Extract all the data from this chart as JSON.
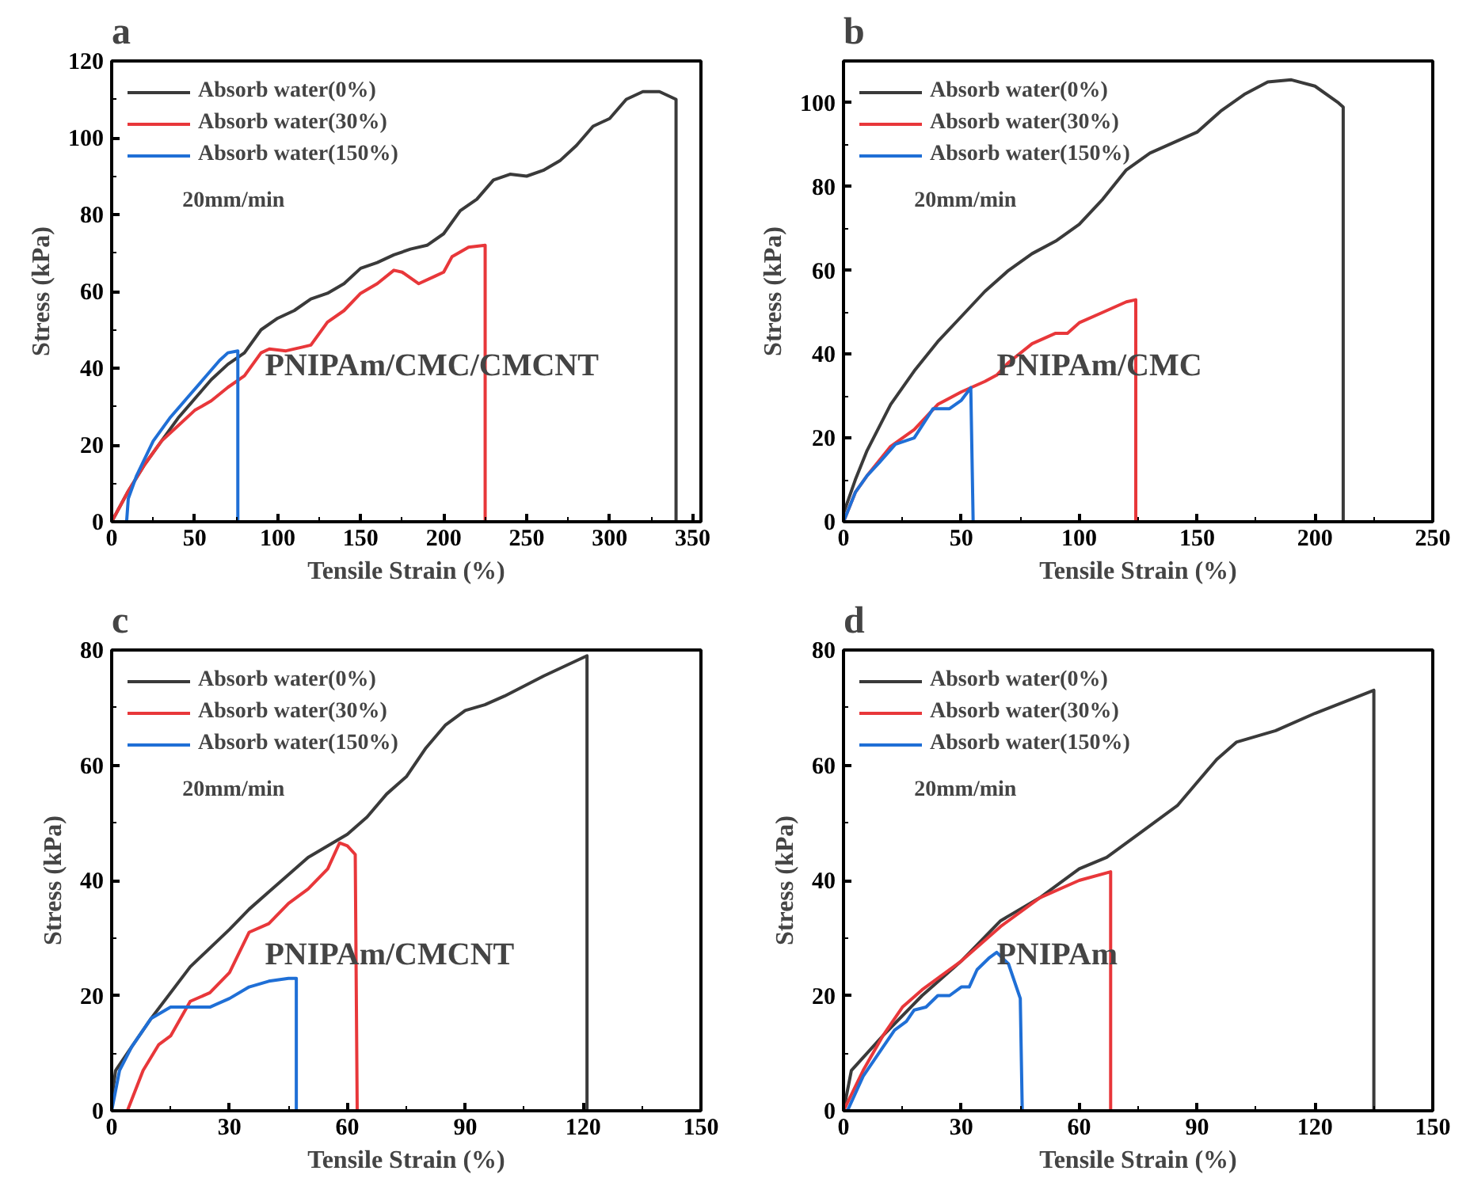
{
  "chart_data": [
    {
      "type": "line",
      "title": "a",
      "xlabel": "Tensile Strain (%)",
      "ylabel": "Stress (kPa)",
      "xlim": [
        0,
        355
      ],
      "ylim": [
        0,
        120
      ],
      "xticks": [
        0,
        50,
        100,
        150,
        200,
        250,
        300,
        350
      ],
      "yticks": [
        0,
        20,
        40,
        60,
        80,
        100,
        120
      ],
      "grid": false,
      "legend": "top left",
      "annotations": [
        "20mm/min",
        "PNIPAm/CMC/CMCNT"
      ],
      "series": [
        {
          "name": "Absorb water(0%)",
          "color": "#3a3a3a",
          "x": [
            0,
            10,
            20,
            30,
            40,
            50,
            60,
            70,
            80,
            90,
            100,
            110,
            120,
            130,
            140,
            150,
            160,
            170,
            180,
            190,
            200,
            210,
            220,
            230,
            240,
            250,
            260,
            270,
            280,
            290,
            300,
            310,
            320,
            330,
            340,
            340
          ],
          "values": [
            0,
            8,
            15,
            21,
            27,
            32,
            37,
            41,
            44,
            50,
            53,
            55,
            58,
            59.5,
            62,
            66,
            67.5,
            69.5,
            71,
            72,
            75,
            81,
            84,
            89,
            90.5,
            90,
            91.5,
            94,
            98,
            103,
            105,
            110,
            112,
            112,
            110,
            0
          ]
        },
        {
          "name": "Absorb water(30%)",
          "color": "#e8373a",
          "x": [
            0,
            10,
            20,
            30,
            40,
            50,
            60,
            70,
            80,
            90,
            95,
            105,
            115,
            120,
            130,
            140,
            150,
            160,
            170,
            175,
            185,
            195,
            200,
            205,
            215,
            225,
            225
          ],
          "values": [
            0,
            8,
            15,
            21,
            25,
            29,
            31.5,
            35,
            38,
            44,
            45,
            44.5,
            45.5,
            46,
            52,
            55,
            59.5,
            62,
            65.5,
            65,
            62,
            64,
            65,
            69,
            71.5,
            72,
            0
          ]
        },
        {
          "name": "Absorb water(150%)",
          "color": "#1f6fd6",
          "x": [
            9,
            10,
            15,
            25,
            35,
            45,
            55,
            65,
            70,
            76,
            76
          ],
          "values": [
            0,
            6,
            12,
            21,
            27,
            32,
            37,
            42,
            44,
            44.5,
            0
          ]
        }
      ]
    },
    {
      "type": "line",
      "title": "b",
      "xlabel": "Tensile Strain (%)",
      "ylabel": "Stress (kPa)",
      "xlim": [
        0,
        250
      ],
      "ylim": [
        0,
        110
      ],
      "xticks": [
        0,
        50,
        100,
        150,
        200,
        250
      ],
      "yticks": [
        0,
        20,
        40,
        60,
        80,
        100
      ],
      "grid": false,
      "legend": "top left",
      "annotations": [
        "20mm/min",
        "PNIPAm/CMC"
      ],
      "series": [
        {
          "name": "Absorb water(0%)",
          "color": "#3a3a3a",
          "x": [
            0,
            5,
            10,
            20,
            30,
            40,
            50,
            60,
            70,
            80,
            90,
            100,
            110,
            120,
            130,
            140,
            150,
            160,
            170,
            180,
            190,
            200,
            210,
            212,
            212
          ],
          "values": [
            2,
            10,
            17,
            28,
            36,
            43,
            49,
            55,
            60,
            64,
            67,
            71,
            77,
            84,
            88,
            90.5,
            93,
            98,
            102,
            105,
            105.5,
            104,
            100,
            99,
            0
          ]
        },
        {
          "name": "Absorb water(30%)",
          "color": "#e8373a",
          "x": [
            0,
            5,
            10,
            20,
            30,
            40,
            50,
            60,
            65,
            70,
            80,
            90,
            95,
            100,
            110,
            120,
            124,
            124
          ],
          "values": [
            0,
            7,
            11,
            18,
            22,
            28,
            31,
            33.5,
            35,
            38,
            42.5,
            45,
            45,
            47.5,
            50,
            52.5,
            53,
            0
          ]
        },
        {
          "name": "Absorb water(150%)",
          "color": "#1f6fd6",
          "x": [
            0,
            5,
            10,
            15,
            22,
            30,
            38,
            45,
            50,
            54,
            55
          ],
          "values": [
            0,
            7,
            11,
            14,
            18.5,
            20,
            27,
            27,
            29,
            32,
            0
          ]
        }
      ]
    },
    {
      "type": "line",
      "title": "c",
      "xlabel": "Tensile Strain (%)",
      "ylabel": "Stress (kPa)",
      "xlim": [
        0,
        150
      ],
      "ylim": [
        0,
        80
      ],
      "xticks": [
        0,
        30,
        60,
        90,
        120,
        150
      ],
      "yticks": [
        0,
        20,
        40,
        60,
        80
      ],
      "grid": false,
      "legend": "top left",
      "annotations": [
        "20mm/min",
        "PNIPAm/CMCNT"
      ],
      "series": [
        {
          "name": "Absorb water(0%)",
          "color": "#3a3a3a",
          "x": [
            0,
            1,
            5,
            10,
            20,
            30,
            35,
            40,
            50,
            60,
            65,
            70,
            75,
            80,
            85,
            90,
            95,
            100,
            110,
            121,
            121
          ],
          "values": [
            2,
            7,
            11,
            16,
            25,
            31.5,
            35,
            38,
            44,
            48,
            51,
            55,
            58,
            63,
            67,
            69.5,
            70.5,
            72,
            75.5,
            79,
            0
          ]
        },
        {
          "name": "Absorb water(30%)",
          "color": "#e8373a",
          "x": [
            4,
            8,
            12,
            15,
            20,
            25,
            30,
            35,
            40,
            45,
            50,
            55,
            58,
            60,
            62,
            62.5
          ],
          "values": [
            0,
            7,
            11.5,
            13,
            19,
            20.5,
            24,
            31,
            32.5,
            36,
            38.5,
            42,
            46.5,
            46,
            44.5,
            0
          ]
        },
        {
          "name": "Absorb water(150%)",
          "color": "#1f6fd6",
          "x": [
            0,
            2,
            5,
            10,
            15,
            20,
            25,
            30,
            35,
            40,
            45,
            47,
            47
          ],
          "values": [
            0,
            7,
            11,
            16,
            18,
            18,
            18,
            19.5,
            21.5,
            22.5,
            23,
            23,
            0
          ]
        }
      ]
    },
    {
      "type": "line",
      "title": "d",
      "xlabel": "Tensile Strain (%)",
      "ylabel": "Stress (kPa)",
      "xlim": [
        0,
        150
      ],
      "ylim": [
        0,
        80
      ],
      "xticks": [
        0,
        30,
        60,
        90,
        120,
        150
      ],
      "yticks": [
        0,
        20,
        40,
        60,
        80
      ],
      "grid": false,
      "legend": "top left",
      "annotations": [
        "20mm/min",
        "PNIPAm"
      ],
      "series": [
        {
          "name": "Absorb water(0%)",
          "color": "#3a3a3a",
          "x": [
            0,
            2,
            10,
            20,
            30,
            40,
            50,
            60,
            67,
            75,
            85,
            90,
            95,
            100,
            110,
            120,
            135,
            135
          ],
          "values": [
            0,
            7,
            13,
            20,
            26,
            33,
            37,
            42,
            44,
            48,
            53,
            57,
            61,
            64,
            66,
            69,
            73,
            0
          ]
        },
        {
          "name": "Absorb water(30%)",
          "color": "#e8373a",
          "x": [
            0,
            5,
            10,
            15,
            20,
            30,
            40,
            50,
            60,
            68,
            68
          ],
          "values": [
            0,
            7,
            13,
            18,
            21,
            26,
            32,
            37,
            40,
            41.5,
            0
          ]
        },
        {
          "name": "Absorb water(150%)",
          "color": "#1f6fd6",
          "x": [
            1,
            5,
            10,
            13,
            16,
            18,
            21,
            24,
            27,
            30,
            32,
            34,
            37,
            39,
            42,
            45,
            45.5
          ],
          "values": [
            0,
            6,
            11,
            14,
            15.5,
            17.5,
            18,
            20,
            20,
            21.5,
            21.5,
            24.5,
            26.5,
            27.5,
            25.5,
            19.5,
            0
          ]
        }
      ]
    }
  ]
}
